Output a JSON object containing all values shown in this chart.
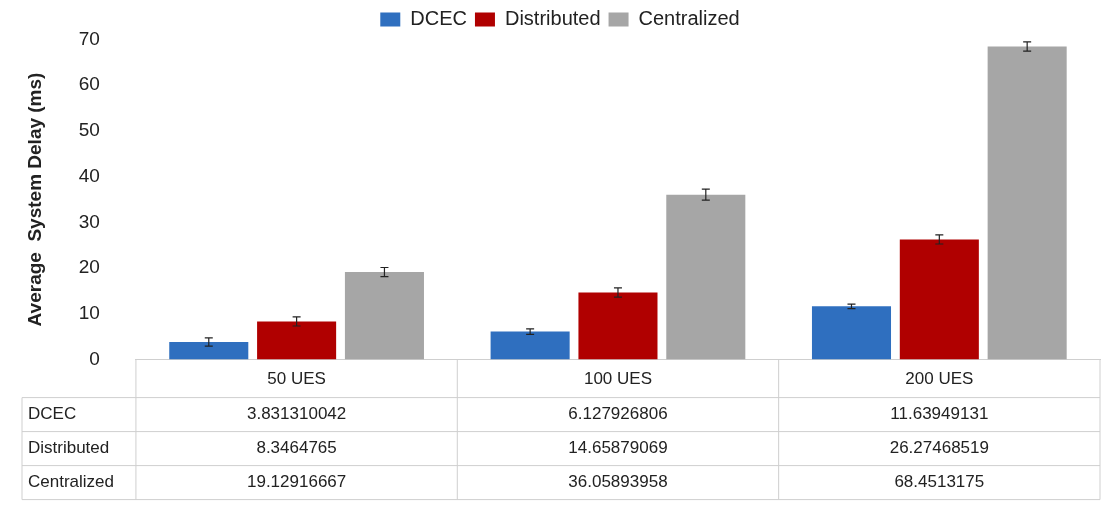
{
  "chart_data": {
    "type": "bar",
    "ylabel": "Average  System Delay (ms)",
    "categories": [
      "50 UES",
      "100 UES",
      "200 UES"
    ],
    "series": [
      {
        "name": "DCEC",
        "color": "#2f6fbf",
        "values": [
          3.831310042,
          6.127926806,
          11.63949131
        ],
        "errors": [
          0.9,
          0.6,
          0.5
        ]
      },
      {
        "name": "Distributed",
        "color": "#b00000",
        "values": [
          8.3464765,
          14.65879069,
          26.27468519
        ],
        "errors": [
          1,
          1,
          1
        ]
      },
      {
        "name": "Centralized",
        "color": "#a6a6a6",
        "values": [
          19.12916667,
          36.05893958,
          68.4513175
        ],
        "errors": [
          1,
          1.2,
          1
        ]
      }
    ],
    "ylim": [
      0,
      70
    ],
    "yticks": [
      0,
      10,
      20,
      30,
      40,
      50,
      60,
      70
    ],
    "grid": false,
    "legend": "top",
    "data_labels": true
  }
}
